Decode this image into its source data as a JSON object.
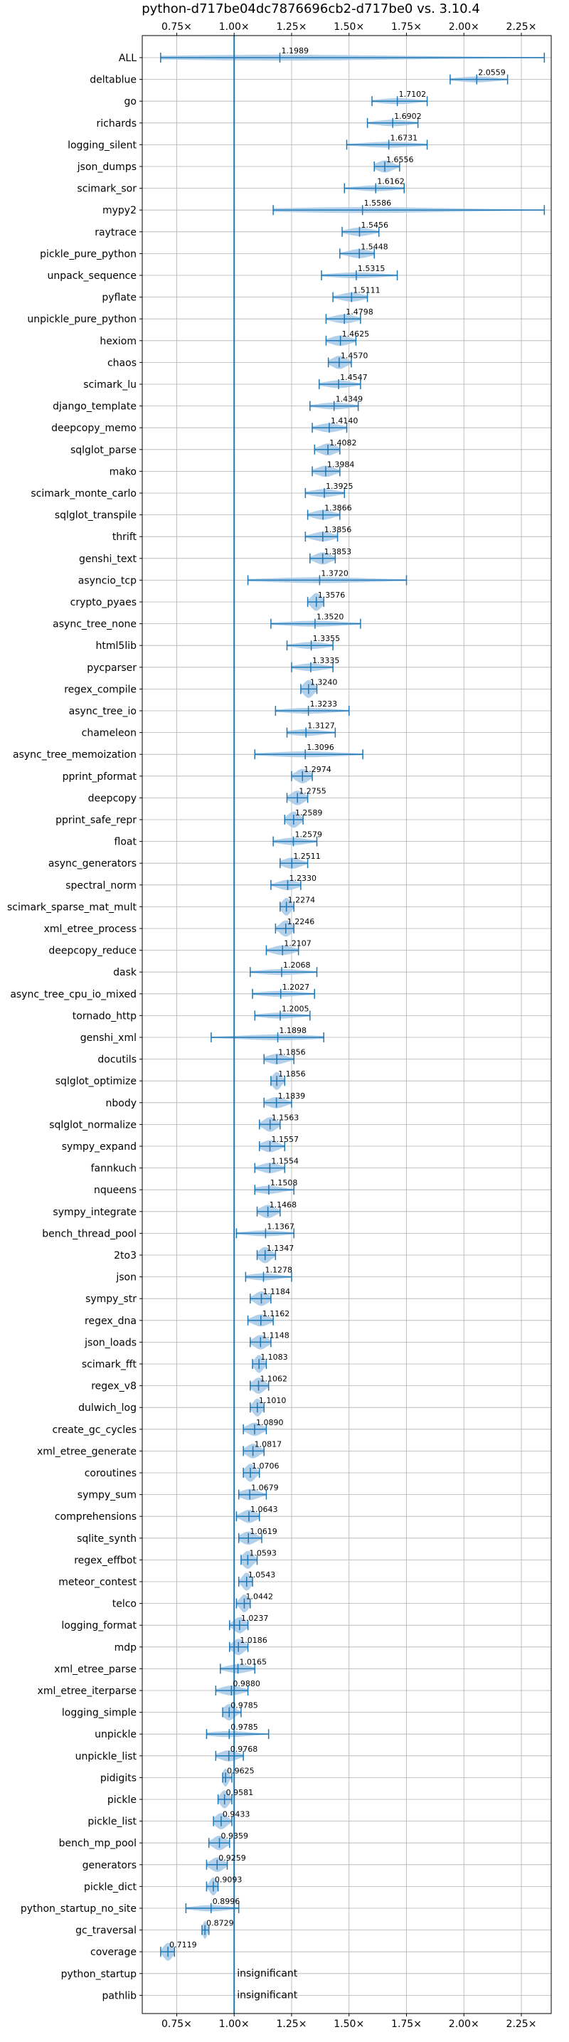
{
  "chart_data": {
    "type": "violin",
    "title": "python-d717be04dc7876696cb2-d717be0 vs. 3.10.4",
    "xlim": [
      0.6,
      2.38
    ],
    "x_ticks": [
      {
        "value": 0.75,
        "label": "0.75×"
      },
      {
        "value": 1.0,
        "label": "1.00×"
      },
      {
        "value": 1.25,
        "label": "1.25×"
      },
      {
        "value": 1.5,
        "label": "1.50×"
      },
      {
        "value": 1.75,
        "label": "1.75×"
      },
      {
        "value": 2.0,
        "label": "2.00×"
      },
      {
        "value": 2.25,
        "label": "2.25×"
      }
    ],
    "reference_line": 1.0,
    "grid": true,
    "colors": {
      "violin": "#a6c8e6",
      "line": "#1f77b4"
    },
    "benchmarks": [
      {
        "name": "ALL",
        "value": 1.1989,
        "value_label": "1.1989",
        "min": 0.68,
        "max": 2.35
      },
      {
        "name": "deltablue",
        "value": 2.0559,
        "value_label": "2.0559",
        "min": 1.94,
        "max": 2.19
      },
      {
        "name": "go",
        "value": 1.7102,
        "value_label": "1.7102",
        "min": 1.6,
        "max": 1.84
      },
      {
        "name": "richards",
        "value": 1.6902,
        "value_label": "1.6902",
        "min": 1.58,
        "max": 1.8
      },
      {
        "name": "logging_silent",
        "value": 1.6731,
        "value_label": "1.6731",
        "min": 1.49,
        "max": 1.84
      },
      {
        "name": "json_dumps",
        "value": 1.6556,
        "value_label": "1.6556",
        "min": 1.61,
        "max": 1.72
      },
      {
        "name": "scimark_sor",
        "value": 1.6162,
        "value_label": "1.6162",
        "min": 1.48,
        "max": 1.74
      },
      {
        "name": "mypy2",
        "value": 1.5586,
        "value_label": "1.5586",
        "min": 1.17,
        "max": 2.35
      },
      {
        "name": "raytrace",
        "value": 1.5456,
        "value_label": "1.5456",
        "min": 1.47,
        "max": 1.63
      },
      {
        "name": "pickle_pure_python",
        "value": 1.5448,
        "value_label": "1.5448",
        "min": 1.46,
        "max": 1.61
      },
      {
        "name": "unpack_sequence",
        "value": 1.5315,
        "value_label": "1.5315",
        "min": 1.38,
        "max": 1.71
      },
      {
        "name": "pyflate",
        "value": 1.5111,
        "value_label": "1.5111",
        "min": 1.43,
        "max": 1.58
      },
      {
        "name": "unpickle_pure_python",
        "value": 1.4798,
        "value_label": "1.4798",
        "min": 1.4,
        "max": 1.55
      },
      {
        "name": "hexiom",
        "value": 1.4625,
        "value_label": "1.4625",
        "min": 1.4,
        "max": 1.53
      },
      {
        "name": "chaos",
        "value": 1.457,
        "value_label": "1.4570",
        "min": 1.41,
        "max": 1.51
      },
      {
        "name": "scimark_lu",
        "value": 1.4547,
        "value_label": "1.4547",
        "min": 1.37,
        "max": 1.55
      },
      {
        "name": "django_template",
        "value": 1.4349,
        "value_label": "1.4349",
        "min": 1.33,
        "max": 1.54
      },
      {
        "name": "deepcopy_memo",
        "value": 1.414,
        "value_label": "1.4140",
        "min": 1.34,
        "max": 1.49
      },
      {
        "name": "sqlglot_parse",
        "value": 1.4082,
        "value_label": "1.4082",
        "min": 1.35,
        "max": 1.46
      },
      {
        "name": "mako",
        "value": 1.3984,
        "value_label": "1.3984",
        "min": 1.34,
        "max": 1.46
      },
      {
        "name": "scimark_monte_carlo",
        "value": 1.3925,
        "value_label": "1.3925",
        "min": 1.31,
        "max": 1.48
      },
      {
        "name": "sqlglot_transpile",
        "value": 1.3866,
        "value_label": "1.3866",
        "min": 1.32,
        "max": 1.46
      },
      {
        "name": "thrift",
        "value": 1.3856,
        "value_label": "1.3856",
        "min": 1.31,
        "max": 1.45
      },
      {
        "name": "genshi_text",
        "value": 1.3853,
        "value_label": "1.3853",
        "min": 1.33,
        "max": 1.44
      },
      {
        "name": "asyncio_tcp",
        "value": 1.372,
        "value_label": "1.3720",
        "min": 1.06,
        "max": 1.75
      },
      {
        "name": "crypto_pyaes",
        "value": 1.3576,
        "value_label": "1.3576",
        "min": 1.32,
        "max": 1.39
      },
      {
        "name": "async_tree_none",
        "value": 1.352,
        "value_label": "1.3520",
        "min": 1.16,
        "max": 1.55
      },
      {
        "name": "html5lib",
        "value": 1.3355,
        "value_label": "1.3355",
        "min": 1.23,
        "max": 1.43
      },
      {
        "name": "pycparser",
        "value": 1.3335,
        "value_label": "1.3335",
        "min": 1.25,
        "max": 1.43
      },
      {
        "name": "regex_compile",
        "value": 1.324,
        "value_label": "1.3240",
        "min": 1.29,
        "max": 1.36
      },
      {
        "name": "async_tree_io",
        "value": 1.3233,
        "value_label": "1.3233",
        "min": 1.18,
        "max": 1.5
      },
      {
        "name": "chameleon",
        "value": 1.3127,
        "value_label": "1.3127",
        "min": 1.23,
        "max": 1.44
      },
      {
        "name": "async_tree_memoization",
        "value": 1.3096,
        "value_label": "1.3096",
        "min": 1.09,
        "max": 1.56
      },
      {
        "name": "pprint_pformat",
        "value": 1.2974,
        "value_label": "1.2974",
        "min": 1.25,
        "max": 1.34
      },
      {
        "name": "deepcopy",
        "value": 1.2755,
        "value_label": "1.2755",
        "min": 1.23,
        "max": 1.32
      },
      {
        "name": "pprint_safe_repr",
        "value": 1.2589,
        "value_label": "1.2589",
        "min": 1.22,
        "max": 1.3
      },
      {
        "name": "float",
        "value": 1.2579,
        "value_label": "1.2579",
        "min": 1.17,
        "max": 1.36
      },
      {
        "name": "async_generators",
        "value": 1.2511,
        "value_label": "1.2511",
        "min": 1.2,
        "max": 1.32
      },
      {
        "name": "spectral_norm",
        "value": 1.233,
        "value_label": "1.2330",
        "min": 1.16,
        "max": 1.29
      },
      {
        "name": "scimark_sparse_mat_mult",
        "value": 1.2274,
        "value_label": "1.2274",
        "min": 1.2,
        "max": 1.26
      },
      {
        "name": "xml_etree_process",
        "value": 1.2246,
        "value_label": "1.2246",
        "min": 1.18,
        "max": 1.26
      },
      {
        "name": "deepcopy_reduce",
        "value": 1.2107,
        "value_label": "1.2107",
        "min": 1.14,
        "max": 1.28
      },
      {
        "name": "dask",
        "value": 1.2068,
        "value_label": "1.2068",
        "min": 1.07,
        "max": 1.36
      },
      {
        "name": "async_tree_cpu_io_mixed",
        "value": 1.2027,
        "value_label": "1.2027",
        "min": 1.08,
        "max": 1.35
      },
      {
        "name": "tornado_http",
        "value": 1.2005,
        "value_label": "1.2005",
        "min": 1.09,
        "max": 1.33
      },
      {
        "name": "genshi_xml",
        "value": 1.1898,
        "value_label": "1.1898",
        "min": 0.9,
        "max": 1.39
      },
      {
        "name": "docutils",
        "value": 1.1856,
        "value_label": "1.1856",
        "min": 1.13,
        "max": 1.26
      },
      {
        "name": "sqlglot_optimize",
        "value": 1.1856,
        "value_label": "1.1856",
        "min": 1.16,
        "max": 1.22
      },
      {
        "name": "nbody",
        "value": 1.1839,
        "value_label": "1.1839",
        "min": 1.13,
        "max": 1.25
      },
      {
        "name": "sqlglot_normalize",
        "value": 1.1563,
        "value_label": "1.1563",
        "min": 1.11,
        "max": 1.2
      },
      {
        "name": "sympy_expand",
        "value": 1.1557,
        "value_label": "1.1557",
        "min": 1.11,
        "max": 1.22
      },
      {
        "name": "fannkuch",
        "value": 1.1554,
        "value_label": "1.1554",
        "min": 1.09,
        "max": 1.22
      },
      {
        "name": "nqueens",
        "value": 1.1508,
        "value_label": "1.1508",
        "min": 1.09,
        "max": 1.26
      },
      {
        "name": "sympy_integrate",
        "value": 1.1468,
        "value_label": "1.1468",
        "min": 1.1,
        "max": 1.2
      },
      {
        "name": "bench_thread_pool",
        "value": 1.1367,
        "value_label": "1.1367",
        "min": 1.01,
        "max": 1.26
      },
      {
        "name": "2to3",
        "value": 1.1347,
        "value_label": "1.1347",
        "min": 1.1,
        "max": 1.18
      },
      {
        "name": "json",
        "value": 1.1278,
        "value_label": "1.1278",
        "min": 1.05,
        "max": 1.25
      },
      {
        "name": "sympy_str",
        "value": 1.1184,
        "value_label": "1.1184",
        "min": 1.07,
        "max": 1.16
      },
      {
        "name": "regex_dna",
        "value": 1.1162,
        "value_label": "1.1162",
        "min": 1.06,
        "max": 1.17
      },
      {
        "name": "json_loads",
        "value": 1.1148,
        "value_label": "1.1148",
        "min": 1.07,
        "max": 1.16
      },
      {
        "name": "scimark_fft",
        "value": 1.1083,
        "value_label": "1.1083",
        "min": 1.08,
        "max": 1.14
      },
      {
        "name": "regex_v8",
        "value": 1.1062,
        "value_label": "1.1062",
        "min": 1.07,
        "max": 1.15
      },
      {
        "name": "dulwich_log",
        "value": 1.101,
        "value_label": "1.1010",
        "min": 1.07,
        "max": 1.13
      },
      {
        "name": "create_gc_cycles",
        "value": 1.089,
        "value_label": "1.0890",
        "min": 1.04,
        "max": 1.14
      },
      {
        "name": "xml_etree_generate",
        "value": 1.0817,
        "value_label": "1.0817",
        "min": 1.04,
        "max": 1.13
      },
      {
        "name": "coroutines",
        "value": 1.0706,
        "value_label": "1.0706",
        "min": 1.04,
        "max": 1.11
      },
      {
        "name": "sympy_sum",
        "value": 1.0679,
        "value_label": "1.0679",
        "min": 1.02,
        "max": 1.14
      },
      {
        "name": "comprehensions",
        "value": 1.0643,
        "value_label": "1.0643",
        "min": 1.01,
        "max": 1.11
      },
      {
        "name": "sqlite_synth",
        "value": 1.0619,
        "value_label": "1.0619",
        "min": 1.02,
        "max": 1.12
      },
      {
        "name": "regex_effbot",
        "value": 1.0593,
        "value_label": "1.0593",
        "min": 1.03,
        "max": 1.1
      },
      {
        "name": "meteor_contest",
        "value": 1.0543,
        "value_label": "1.0543",
        "min": 1.02,
        "max": 1.08
      },
      {
        "name": "telco",
        "value": 1.0442,
        "value_label": "1.0442",
        "min": 1.01,
        "max": 1.07
      },
      {
        "name": "logging_format",
        "value": 1.0237,
        "value_label": "1.0237",
        "min": 0.98,
        "max": 1.06
      },
      {
        "name": "mdp",
        "value": 1.0186,
        "value_label": "1.0186",
        "min": 0.98,
        "max": 1.06
      },
      {
        "name": "xml_etree_parse",
        "value": 1.0165,
        "value_label": "1.0165",
        "min": 0.94,
        "max": 1.09
      },
      {
        "name": "xml_etree_iterparse",
        "value": 0.988,
        "value_label": "0.9880",
        "min": 0.92,
        "max": 1.06
      },
      {
        "name": "logging_simple",
        "value": 0.9785,
        "value_label": "0.9785",
        "min": 0.95,
        "max": 1.03
      },
      {
        "name": "unpickle",
        "value": 0.9785,
        "value_label": "0.9785",
        "min": 0.88,
        "max": 1.15
      },
      {
        "name": "unpickle_list",
        "value": 0.9768,
        "value_label": "0.9768",
        "min": 0.92,
        "max": 1.04
      },
      {
        "name": "pidigits",
        "value": 0.9625,
        "value_label": "0.9625",
        "min": 0.95,
        "max": 0.99
      },
      {
        "name": "pickle",
        "value": 0.9581,
        "value_label": "0.9581",
        "min": 0.93,
        "max": 0.99
      },
      {
        "name": "pickle_list",
        "value": 0.9433,
        "value_label": "0.9433",
        "min": 0.91,
        "max": 0.99
      },
      {
        "name": "bench_mp_pool",
        "value": 0.9359,
        "value_label": "0.9359",
        "min": 0.89,
        "max": 0.98
      },
      {
        "name": "generators",
        "value": 0.9259,
        "value_label": "0.9259",
        "min": 0.88,
        "max": 0.97
      },
      {
        "name": "pickle_dict",
        "value": 0.9093,
        "value_label": "0.9093",
        "min": 0.88,
        "max": 0.93
      },
      {
        "name": "python_startup_no_site",
        "value": 0.8996,
        "value_label": "0.8996",
        "min": 0.79,
        "max": 1.02
      },
      {
        "name": "gc_traversal",
        "value": 0.8729,
        "value_label": "0.8729",
        "min": 0.86,
        "max": 0.89
      },
      {
        "name": "coverage",
        "value": 0.7119,
        "value_label": "0.7119",
        "min": 0.68,
        "max": 0.74
      },
      {
        "name": "python_startup",
        "value": null,
        "value_label": "insignificant"
      },
      {
        "name": "pathlib",
        "value": null,
        "value_label": "insignificant"
      }
    ]
  }
}
